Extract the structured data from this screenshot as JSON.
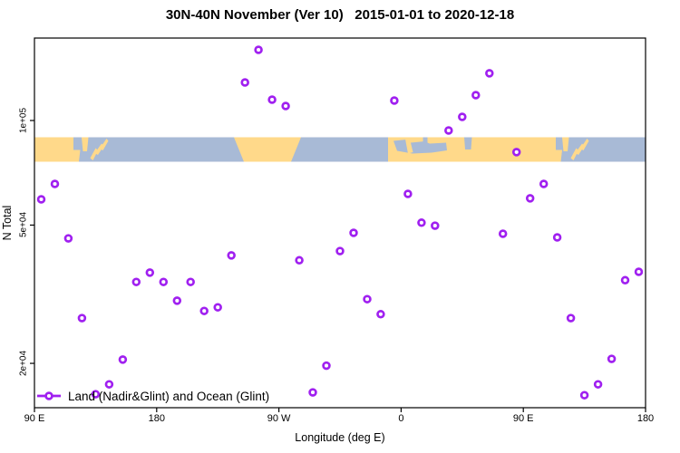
{
  "chart": {
    "title": "30N-40N November (Ver 10)   2015-01-01 to 2020-12-18",
    "xlabel": "Longitude (deg E)",
    "ylabel": "N Total",
    "legend_label": "Land (Nadir&Glint) and Ocean (Glint)",
    "colors": {
      "points": "#A020F0",
      "land": "#FFD98A",
      "ocean": "#A8BAD6",
      "axis": "#000000"
    }
  },
  "chart_data": {
    "type": "scatter",
    "title": "30N-40N November (Ver 10)   2015-01-01 to 2020-12-18",
    "xlabel": "Longitude (deg E)",
    "ylabel": "N Total",
    "x_axis": {
      "range_deg_unwrapped": [
        90,
        540
      ],
      "ticks": [
        {
          "pos": 90,
          "label": "90 E"
        },
        {
          "pos": 180,
          "label": "180"
        },
        {
          "pos": 270,
          "label": "90 W"
        },
        {
          "pos": 360,
          "label": "0"
        },
        {
          "pos": 450,
          "label": "90 E"
        },
        {
          "pos": 540,
          "label": "180"
        }
      ]
    },
    "y_axis": {
      "scale": "log",
      "ticks": [
        {
          "value": 100000,
          "label": "1e+05"
        },
        {
          "value": 50000,
          "label": "5e+04"
        },
        {
          "value": 20000,
          "label": "2e+04"
        }
      ]
    },
    "legend": {
      "position": "bottom-left",
      "entries": [
        "Land (Nadir&Glint) and Ocean (Glint)"
      ]
    },
    "map_band": {
      "lat_range": "30N-40N",
      "land_color": "#FFD98A",
      "ocean_color": "#A8BAD6"
    },
    "series": [
      {
        "name": "Land (Nadir&Glint) and Ocean (Glint)",
        "columns": [
          "longitude_degE_unwrapped",
          "n_total"
        ],
        "points": [
          [
            95,
            59300
          ],
          [
            105,
            65700
          ],
          [
            115,
            45800
          ],
          [
            125,
            27000
          ],
          [
            135,
            16300
          ],
          [
            145,
            17400
          ],
          [
            155,
            20500
          ],
          [
            165,
            34300
          ],
          [
            175,
            36500
          ],
          [
            185,
            34300
          ],
          [
            195,
            30300
          ],
          [
            205,
            34300
          ],
          [
            215,
            28300
          ],
          [
            225,
            29000
          ],
          [
            235,
            40900
          ],
          [
            245,
            128700
          ],
          [
            255,
            159700
          ],
          [
            265,
            114800
          ],
          [
            275,
            110100
          ],
          [
            285,
            39600
          ],
          [
            295,
            16500
          ],
          [
            305,
            19700
          ],
          [
            315,
            42100
          ],
          [
            325,
            47500
          ],
          [
            335,
            30600
          ],
          [
            345,
            27700
          ],
          [
            355,
            114100
          ],
          [
            365,
            61500
          ],
          [
            375,
            50800
          ],
          [
            385,
            49800
          ],
          [
            395,
            93600
          ],
          [
            405,
            102400
          ],
          [
            415,
            118300
          ],
          [
            425,
            136700
          ],
          [
            435,
            47200
          ],
          [
            445,
            81100
          ],
          [
            455,
            59700
          ],
          [
            465,
            65700
          ],
          [
            475,
            46100
          ],
          [
            485,
            27000
          ],
          [
            495,
            16200
          ],
          [
            505,
            17400
          ],
          [
            515,
            20600
          ],
          [
            525,
            34700
          ],
          [
            535,
            36700
          ]
        ]
      }
    ]
  }
}
